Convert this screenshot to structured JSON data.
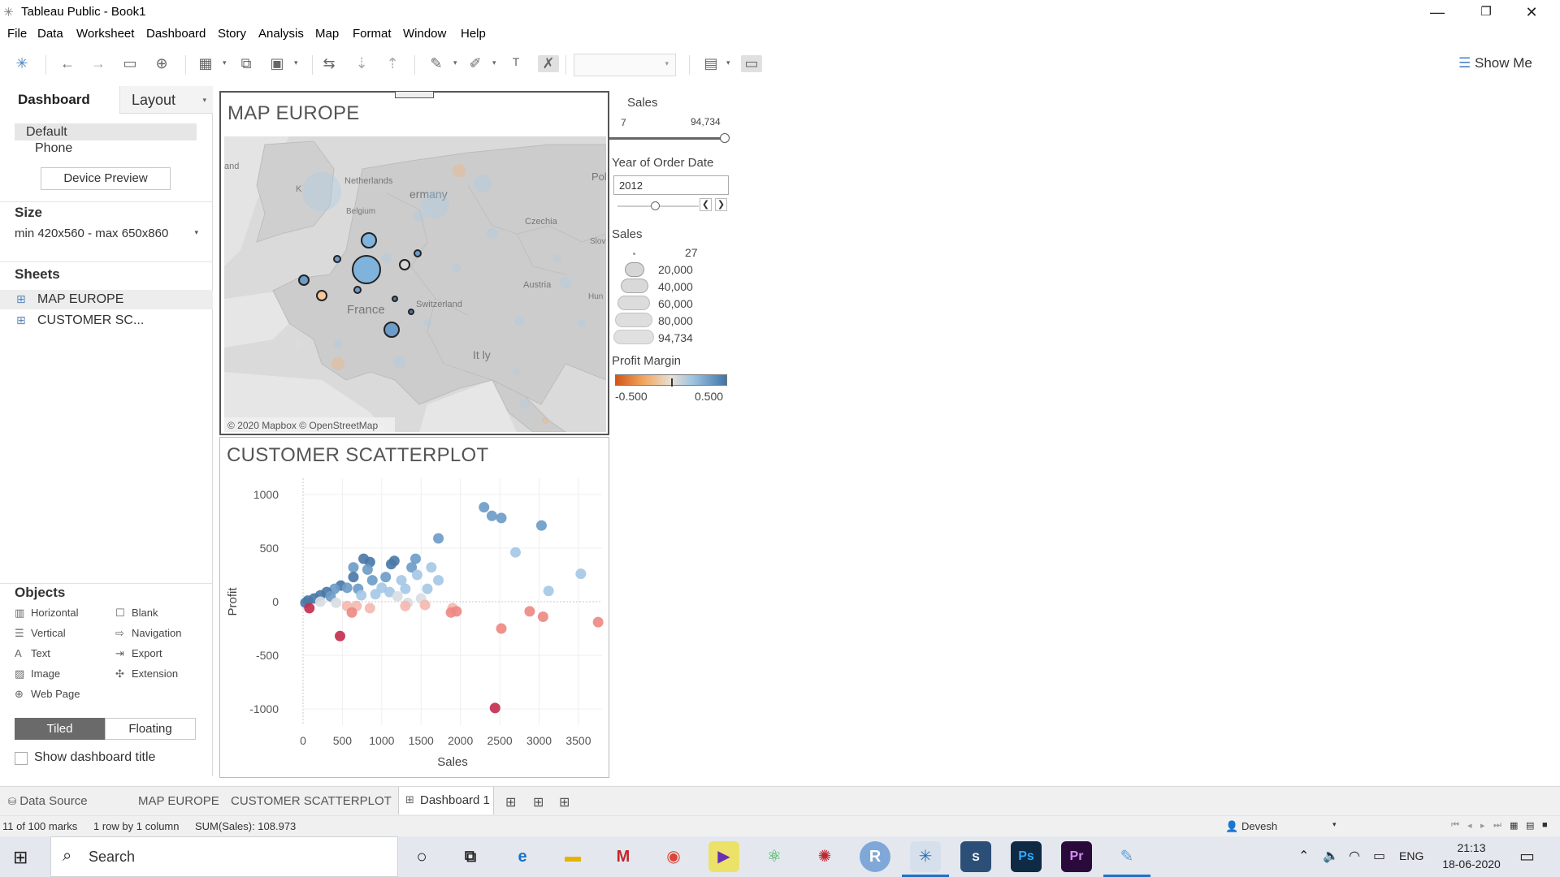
{
  "window": {
    "title": "Tableau Public - Book1",
    "logo": "✳"
  },
  "menu": [
    "File",
    "Data",
    "Worksheet",
    "Dashboard",
    "Story",
    "Analysis",
    "Map",
    "Format",
    "Window",
    "Help"
  ],
  "toolbar": {
    "show_me": "Show Me"
  },
  "left_pane": {
    "tabs": {
      "dashboard": "Dashboard",
      "layout": "Layout"
    },
    "devices": {
      "default": "Default",
      "phone": "Phone",
      "preview_button": "Device Preview"
    },
    "size": {
      "title": "Size",
      "value": "min 420x560 - max 650x860"
    },
    "sheets": {
      "title": "Sheets",
      "items": [
        "MAP EUROPE",
        "CUSTOMER SC..."
      ]
    },
    "objects": {
      "title": "Objects",
      "items": [
        "Horizontal",
        "Blank",
        "Vertical",
        "Navigation",
        "Text",
        "Export",
        "Image",
        "Extension",
        "Web Page"
      ]
    },
    "layout_mode": {
      "tiled": "Tiled",
      "floating": "Floating"
    },
    "show_title": "Show dashboard title"
  },
  "map": {
    "title": "MAP EUROPE",
    "attribution": "© 2020 Mapbox © OpenStreetMap",
    "labels": {
      "netherlands": "Netherlands",
      "germany": "ermany",
      "belgium": "Belgium",
      "czechia": "Czechia",
      "poland": "Pol",
      "slovakia": "Slov",
      "austria": "Austria",
      "hungary": "Hun",
      "france": "France",
      "switzerland": "Switzerland",
      "italy": "It  ly",
      "ireland": "and",
      "uk": "K"
    }
  },
  "scatter": {
    "title": "CUSTOMER SCATTERPLOT"
  },
  "chart_data": {
    "type": "scatter",
    "title": "CUSTOMER SCATTERPLOT",
    "xlabel": "Sales",
    "ylabel": "Profit",
    "xlim": [
      0,
      3800
    ],
    "ylim": [
      -1150,
      1150
    ],
    "xticks": [
      0,
      500,
      1000,
      1500,
      2000,
      2500,
      3000,
      3500
    ],
    "yticks": [
      1000,
      500,
      0,
      -500,
      -1000
    ],
    "colors": {
      "strong_positive": "#4a79a8",
      "positive": "#6e9cc8",
      "weak_positive": "#a6c8e6",
      "neutral": "#d9dde2",
      "weak_negative": "#f4b8b0",
      "negative": "#ee8a84",
      "strong_negative": "#c4304f"
    },
    "points": [
      {
        "x": 2300,
        "y": 880,
        "c": "positive"
      },
      {
        "x": 2400,
        "y": 800,
        "c": "positive"
      },
      {
        "x": 2520,
        "y": 780,
        "c": "positive"
      },
      {
        "x": 3030,
        "y": 710,
        "c": "positive"
      },
      {
        "x": 1720,
        "y": 590,
        "c": "positive"
      },
      {
        "x": 2700,
        "y": 460,
        "c": "weak_positive"
      },
      {
        "x": 3120,
        "y": 100,
        "c": "weak_positive"
      },
      {
        "x": 3530,
        "y": 260,
        "c": "weak_positive"
      },
      {
        "x": 1720,
        "y": 200,
        "c": "weak_positive"
      },
      {
        "x": 1630,
        "y": 320,
        "c": "weak_positive"
      },
      {
        "x": 1430,
        "y": 400,
        "c": "positive"
      },
      {
        "x": 1380,
        "y": 320,
        "c": "positive"
      },
      {
        "x": 1160,
        "y": 380,
        "c": "strong_positive"
      },
      {
        "x": 1120,
        "y": 350,
        "c": "strong_positive"
      },
      {
        "x": 850,
        "y": 370,
        "c": "strong_positive"
      },
      {
        "x": 770,
        "y": 400,
        "c": "strong_positive"
      },
      {
        "x": 820,
        "y": 300,
        "c": "positive"
      },
      {
        "x": 640,
        "y": 320,
        "c": "positive"
      },
      {
        "x": 640,
        "y": 230,
        "c": "strong_positive"
      },
      {
        "x": 880,
        "y": 200,
        "c": "positive"
      },
      {
        "x": 1050,
        "y": 230,
        "c": "positive"
      },
      {
        "x": 1250,
        "y": 200,
        "c": "weak_positive"
      },
      {
        "x": 1300,
        "y": 120,
        "c": "weak_positive"
      },
      {
        "x": 1450,
        "y": 250,
        "c": "weak_positive"
      },
      {
        "x": 1000,
        "y": 130,
        "c": "weak_positive"
      },
      {
        "x": 1100,
        "y": 90,
        "c": "weak_positive"
      },
      {
        "x": 1580,
        "y": 120,
        "c": "weak_positive"
      },
      {
        "x": 480,
        "y": 150,
        "c": "strong_positive"
      },
      {
        "x": 560,
        "y": 130,
        "c": "positive"
      },
      {
        "x": 400,
        "y": 120,
        "c": "positive"
      },
      {
        "x": 300,
        "y": 90,
        "c": "strong_positive"
      },
      {
        "x": 220,
        "y": 60,
        "c": "strong_positive"
      },
      {
        "x": 140,
        "y": 30,
        "c": "strong_positive"
      },
      {
        "x": 60,
        "y": 10,
        "c": "strong_positive"
      },
      {
        "x": 30,
        "y": -10,
        "c": "strong_positive"
      },
      {
        "x": 350,
        "y": 50,
        "c": "positive"
      },
      {
        "x": 700,
        "y": 120,
        "c": "positive"
      },
      {
        "x": 740,
        "y": 60,
        "c": "weak_positive"
      },
      {
        "x": 920,
        "y": 70,
        "c": "weak_positive"
      },
      {
        "x": 1200,
        "y": 50,
        "c": "neutral"
      },
      {
        "x": 1500,
        "y": 30,
        "c": "neutral"
      },
      {
        "x": 1330,
        "y": -10,
        "c": "neutral"
      },
      {
        "x": 220,
        "y": 0,
        "c": "neutral"
      },
      {
        "x": 420,
        "y": -10,
        "c": "neutral"
      },
      {
        "x": 680,
        "y": -40,
        "c": "weak_negative"
      },
      {
        "x": 560,
        "y": -40,
        "c": "weak_negative"
      },
      {
        "x": 620,
        "y": -100,
        "c": "negative"
      },
      {
        "x": 850,
        "y": -60,
        "c": "weak_negative"
      },
      {
        "x": 1300,
        "y": -40,
        "c": "weak_negative"
      },
      {
        "x": 1550,
        "y": -30,
        "c": "weak_negative"
      },
      {
        "x": 1900,
        "y": -60,
        "c": "weak_negative"
      },
      {
        "x": 1880,
        "y": -100,
        "c": "negative"
      },
      {
        "x": 1950,
        "y": -90,
        "c": "negative"
      },
      {
        "x": 2880,
        "y": -90,
        "c": "negative"
      },
      {
        "x": 3050,
        "y": -140,
        "c": "negative"
      },
      {
        "x": 3750,
        "y": -190,
        "c": "negative"
      },
      {
        "x": 2520,
        "y": -250,
        "c": "negative"
      },
      {
        "x": 80,
        "y": -60,
        "c": "strong_negative"
      },
      {
        "x": 470,
        "y": -320,
        "c": "strong_negative"
      },
      {
        "x": 2440,
        "y": -990,
        "c": "strong_negative"
      }
    ]
  },
  "legends": {
    "sales_filter": {
      "title": "Sales",
      "min": "7",
      "max": "94,734"
    },
    "year": {
      "title": "Year of Order Date",
      "value": "2012"
    },
    "sales_size": {
      "title": "Sales",
      "values": [
        "27",
        "20,000",
        "40,000",
        "60,000",
        "80,000",
        "94,734"
      ]
    },
    "profit_margin": {
      "title": "Profit Margin",
      "min": "-0.500",
      "max": "0.500"
    }
  },
  "tabs": {
    "data_source": "Data Source",
    "sheets": [
      "MAP EUROPE",
      "CUSTOMER SCATTERPLOT"
    ],
    "active": "Dashboard 1"
  },
  "status": {
    "marks": "11 of 100 marks",
    "layout": "1 row by 1 column",
    "sum": "SUM(Sales): 108.973",
    "user": "Devesh"
  },
  "taskbar": {
    "search": "Search",
    "language": "ENG",
    "time": "21:13",
    "date": "18-06-2020"
  }
}
